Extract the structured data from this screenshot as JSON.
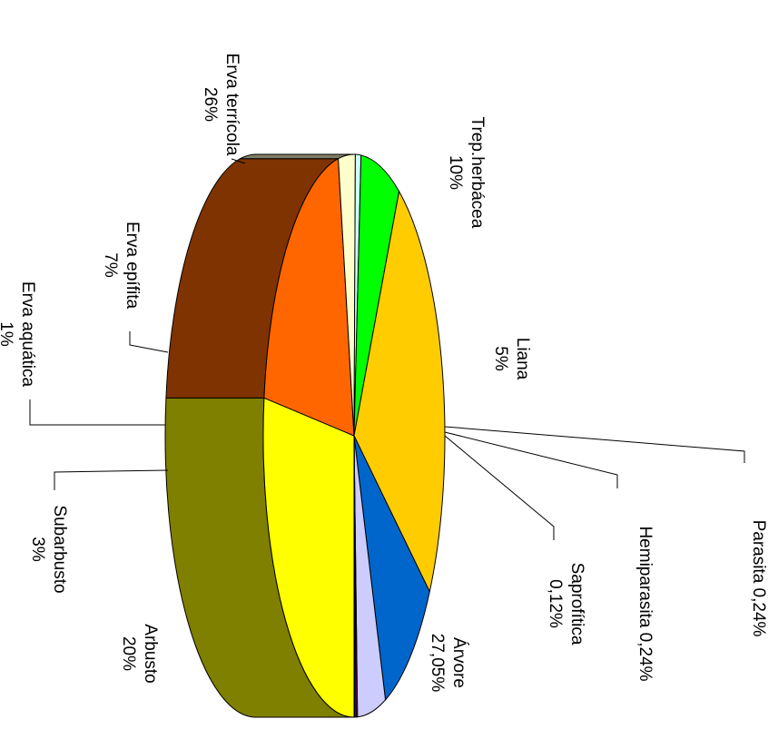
{
  "chart_data": {
    "type": "pie",
    "orientation": "rotated 90 degrees clockwise, 3D",
    "title": "",
    "legend": "none",
    "slices": [
      {
        "name": "Árvore",
        "label": "Árvore",
        "value_label": "27,05%",
        "value": 27.05,
        "color": "#ffff00",
        "side_color": "#7f7f00"
      },
      {
        "name": "Arbusto",
        "label": "Arbusto",
        "value_label": "20%",
        "value": 20,
        "color": "#ff6600",
        "side_color": "#7f3300"
      },
      {
        "name": "Subarbusto",
        "label": "Subarbusto",
        "value_label": "3%",
        "value": 3,
        "color": "#ffffcc",
        "side_color": "#7f7f66"
      },
      {
        "name": "Erva aquática",
        "label": "Erva aquática",
        "value_label": "1%",
        "value": 1,
        "color": "#ccffff",
        "side_color": "#667f7f"
      },
      {
        "name": "Erva epífita",
        "label": "Erva epífita",
        "value_label": "7%",
        "value": 7,
        "color": "#00ff00",
        "side_color": "#007f00"
      },
      {
        "name": "Erva terrícola",
        "label": "Erva terrícola",
        "value_label": "26%",
        "value": 26,
        "color": "#ffcc00",
        "side_color": "#7f6600"
      },
      {
        "name": "Trep.herbácea",
        "label": "Trep.herbácea",
        "value_label": "10%",
        "value": 10,
        "color": "#0066cc",
        "side_color": "#003366"
      },
      {
        "name": "Liana",
        "label": "Liana",
        "value_label": "5%",
        "value": 5,
        "color": "#ccccff",
        "side_color": "#66667f"
      },
      {
        "name": "Parasita",
        "label": "Parasita 0,24%",
        "value_label": "",
        "value": 0.24,
        "color": "#ff00ff",
        "side_color": "#7f007f"
      },
      {
        "name": "Hemiparasita",
        "label": "Hemiparasita 0,24%",
        "value_label": "",
        "value": 0.24,
        "color": "#993366",
        "side_color": "#4c1933"
      },
      {
        "name": "Saprofítica",
        "label": "Saprofítica",
        "value_label": "0,12%",
        "value": 0.12,
        "color": "#000080",
        "side_color": "#000040"
      }
    ]
  }
}
